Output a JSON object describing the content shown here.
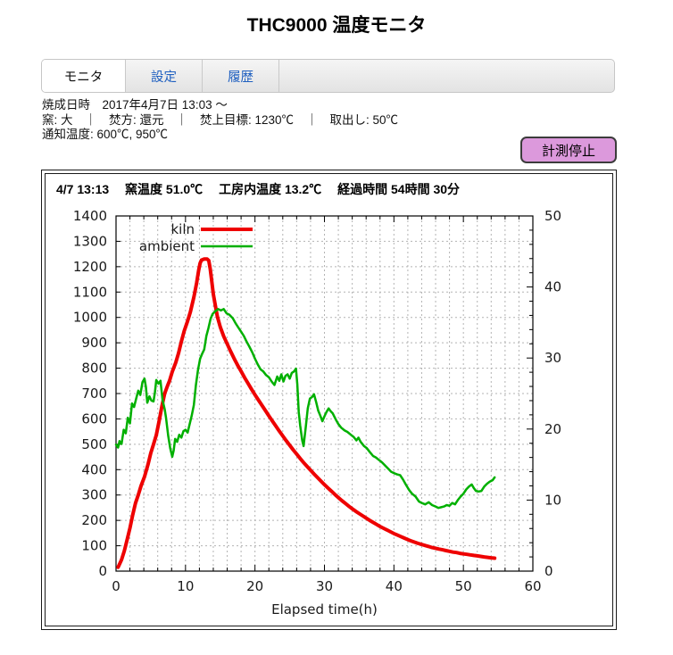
{
  "title": "THC9000 温度モニタ",
  "tabs": [
    {
      "label": "モニタ",
      "active": true
    },
    {
      "label": "設定",
      "active": false
    },
    {
      "label": "履歴",
      "active": false
    }
  ],
  "status": {
    "line1": "焼成日時　2017年4月7日 13:03 ～",
    "line2": "窯: 大　｜　焚方: 還元　｜　焚上目標: 1230℃　｜　取出し: 50℃",
    "line3": "通知温度: 600℃, 950℃"
  },
  "stop_button_label": "計測停止",
  "chart_header": "4/7 13:13　 窯温度 51.0℃　 工房内温度 13.2℃　 経過時間 54時間 30分",
  "colors": {
    "kiln": "#ee0000",
    "ambient": "#00b000",
    "grid": "#b3b3b3",
    "axis": "#000000",
    "tab_link_text": "#2060c0",
    "button_bg": "#dc99dc"
  },
  "chart_data": {
    "type": "line",
    "title": "",
    "xlabel": "Elapsed time(h)",
    "xlim": [
      0,
      60
    ],
    "xtick_step": 10,
    "x_minor_step": 2,
    "ylim_left": [
      0,
      1400
    ],
    "ytick_step_left": 100,
    "ylim_right": [
      0,
      50
    ],
    "ytick_step_right": 10,
    "y_minor_step_right": 2,
    "grid": true,
    "legend_position": "top-left-inside",
    "legend": [
      "kiln",
      "ambient"
    ],
    "series": [
      {
        "name": "kiln",
        "color": "#ee0000",
        "axis": "left",
        "width": 4,
        "points": [
          [
            0.3,
            15
          ],
          [
            0.8,
            45
          ],
          [
            1.2,
            80
          ],
          [
            1.6,
            125
          ],
          [
            2,
            170
          ],
          [
            2.4,
            222
          ],
          [
            2.8,
            268
          ],
          [
            3.2,
            300
          ],
          [
            3.6,
            336
          ],
          [
            4.1,
            372
          ],
          [
            4.6,
            420
          ],
          [
            5,
            465
          ],
          [
            5.4,
            500
          ],
          [
            5.8,
            536
          ],
          [
            6.2,
            592
          ],
          [
            6.6,
            650
          ],
          [
            7,
            700
          ],
          [
            7.4,
            730
          ],
          [
            7.7,
            750
          ],
          [
            8.1,
            786
          ],
          [
            8.6,
            822
          ],
          [
            9,
            860
          ],
          [
            9.4,
            905
          ],
          [
            9.8,
            946
          ],
          [
            10.3,
            986
          ],
          [
            10.7,
            1022
          ],
          [
            11.2,
            1080
          ],
          [
            11.6,
            1136
          ],
          [
            11.9,
            1186
          ],
          [
            12.1,
            1214
          ],
          [
            12.3,
            1226
          ],
          [
            12.7,
            1230
          ],
          [
            13.1,
            1230
          ],
          [
            13.35,
            1224
          ],
          [
            13.55,
            1192
          ],
          [
            13.75,
            1150
          ],
          [
            14,
            1092
          ],
          [
            14.3,
            1046
          ],
          [
            14.6,
            1002
          ],
          [
            15,
            962
          ],
          [
            15.5,
            926
          ],
          [
            16,
            896
          ],
          [
            16.5,
            866
          ],
          [
            17,
            838
          ],
          [
            17.5,
            812
          ],
          [
            18,
            788
          ],
          [
            18.5,
            763
          ],
          [
            19,
            740
          ],
          [
            19.5,
            717
          ],
          [
            20,
            695
          ],
          [
            20.5,
            674
          ],
          [
            21,
            654
          ],
          [
            21.5,
            633
          ],
          [
            22,
            612
          ],
          [
            22.5,
            592
          ],
          [
            23,
            572
          ],
          [
            23.5,
            552
          ],
          [
            24,
            533
          ],
          [
            24.5,
            514
          ],
          [
            25,
            496
          ],
          [
            25.5,
            478
          ],
          [
            26,
            461
          ],
          [
            26.5,
            444
          ],
          [
            27,
            428
          ],
          [
            27.5,
            413
          ],
          [
            28,
            398
          ],
          [
            28.5,
            383
          ],
          [
            29,
            369
          ],
          [
            29.5,
            355
          ],
          [
            30,
            341
          ],
          [
            30.5,
            328
          ],
          [
            31,
            315
          ],
          [
            31.5,
            302
          ],
          [
            32,
            290
          ],
          [
            32.5,
            278
          ],
          [
            33,
            267
          ],
          [
            33.5,
            256
          ],
          [
            34,
            246
          ],
          [
            34.5,
            236
          ],
          [
            35,
            227
          ],
          [
            35.5,
            218
          ],
          [
            36,
            209
          ],
          [
            36.5,
            200
          ],
          [
            37,
            192
          ],
          [
            37.5,
            184
          ],
          [
            38,
            176
          ],
          [
            38.5,
            169
          ],
          [
            39,
            162
          ],
          [
            39.5,
            155
          ],
          [
            40,
            148
          ],
          [
            40.5,
            142
          ],
          [
            41,
            136
          ],
          [
            41.5,
            130
          ],
          [
            42,
            124
          ],
          [
            42.5,
            119
          ],
          [
            43,
            114
          ],
          [
            43.5,
            109
          ],
          [
            44,
            105
          ],
          [
            44.5,
            101
          ],
          [
            45,
            97
          ],
          [
            45.5,
            93
          ],
          [
            46,
            90
          ],
          [
            46.5,
            87
          ],
          [
            47,
            84
          ],
          [
            47.5,
            81
          ],
          [
            48,
            78
          ],
          [
            48.5,
            75
          ],
          [
            49,
            73
          ],
          [
            49.5,
            70
          ],
          [
            50,
            68
          ],
          [
            50.5,
            66
          ],
          [
            51,
            64
          ],
          [
            51.5,
            62
          ],
          [
            52,
            60
          ],
          [
            52.5,
            58
          ],
          [
            53,
            56
          ],
          [
            53.5,
            54
          ],
          [
            54,
            52.5
          ],
          [
            54.5,
            51
          ]
        ]
      },
      {
        "name": "ambient",
        "color": "#00b000",
        "axis": "right",
        "width": 2.5,
        "points": [
          [
            0,
            17.8
          ],
          [
            0.3,
            17.4
          ],
          [
            0.5,
            18.3
          ],
          [
            0.8,
            17.9
          ],
          [
            1.1,
            19.9
          ],
          [
            1.4,
            19.4
          ],
          [
            1.7,
            21.6
          ],
          [
            2,
            20.8
          ],
          [
            2.3,
            23.6
          ],
          [
            2.6,
            23.1
          ],
          [
            2.9,
            24.3
          ],
          [
            3.2,
            25.4
          ],
          [
            3.5,
            24.8
          ],
          [
            3.8,
            26.6
          ],
          [
            4.1,
            27.1
          ],
          [
            4.3,
            25.9
          ],
          [
            4.5,
            23.7
          ],
          [
            4.8,
            24.6
          ],
          [
            5.1,
            24
          ],
          [
            5.4,
            23.9
          ],
          [
            5.6,
            25.2
          ],
          [
            5.8,
            26.9
          ],
          [
            6.1,
            26.4
          ],
          [
            6.4,
            26.8
          ],
          [
            6.7,
            24.1
          ],
          [
            7,
            22.8
          ],
          [
            7.2,
            21.6
          ],
          [
            7.5,
            19.1
          ],
          [
            7.8,
            17.3
          ],
          [
            8.1,
            16.1
          ],
          [
            8.3,
            17
          ],
          [
            8.5,
            18.6
          ],
          [
            8.8,
            18.2
          ],
          [
            9.1,
            19.2
          ],
          [
            9.4,
            18.8
          ],
          [
            9.7,
            19.7
          ],
          [
            10,
            19.9
          ],
          [
            10.3,
            19.5
          ],
          [
            10.6,
            20.7
          ],
          [
            10.9,
            21.9
          ],
          [
            11.2,
            23.4
          ],
          [
            11.5,
            26.2
          ],
          [
            11.8,
            28.3
          ],
          [
            12.1,
            29.9
          ],
          [
            12.4,
            30.6
          ],
          [
            12.7,
            31.2
          ],
          [
            13,
            33.1
          ],
          [
            13.3,
            34.2
          ],
          [
            13.6,
            35.5
          ],
          [
            13.9,
            36.2
          ],
          [
            14.3,
            36.6
          ],
          [
            14.7,
            36.9
          ],
          [
            15.1,
            36.7
          ],
          [
            15.5,
            36.9
          ],
          [
            15.9,
            36.3
          ],
          [
            16.3,
            36.1
          ],
          [
            16.8,
            35.6
          ],
          [
            17.2,
            34.9
          ],
          [
            17.6,
            34.3
          ],
          [
            18,
            33.7
          ],
          [
            18.4,
            33.1
          ],
          [
            18.8,
            32.3
          ],
          [
            19.2,
            31.6
          ],
          [
            19.6,
            30.8
          ],
          [
            20,
            29.9
          ],
          [
            20.4,
            29.1
          ],
          [
            20.8,
            28.4
          ],
          [
            21.2,
            28.1
          ],
          [
            21.6,
            27.6
          ],
          [
            22,
            27.3
          ],
          [
            22.4,
            26.7
          ],
          [
            22.8,
            26.2
          ],
          [
            23.2,
            27.4
          ],
          [
            23.5,
            26.8
          ],
          [
            23.8,
            27.7
          ],
          [
            24.1,
            26.7
          ],
          [
            24.4,
            27.5
          ],
          [
            24.7,
            27.7
          ],
          [
            25,
            27.1
          ],
          [
            25.3,
            27.9
          ],
          [
            25.6,
            28.1
          ],
          [
            25.9,
            28.5
          ],
          [
            26.1,
            26.3
          ],
          [
            26.3,
            22.4
          ],
          [
            26.5,
            20.5
          ],
          [
            26.8,
            18.4
          ],
          [
            27,
            17.6
          ],
          [
            27.3,
            20.2
          ],
          [
            27.6,
            22.9
          ],
          [
            27.9,
            24.3
          ],
          [
            28.2,
            24.5
          ],
          [
            28.5,
            24.9
          ],
          [
            28.8,
            23.8
          ],
          [
            29.1,
            22.6
          ],
          [
            29.4,
            21.9
          ],
          [
            29.7,
            21.1
          ],
          [
            30,
            21.8
          ],
          [
            30.3,
            22.4
          ],
          [
            30.6,
            22.9
          ],
          [
            30.9,
            22.5
          ],
          [
            31.2,
            22.2
          ],
          [
            31.6,
            21.4
          ],
          [
            32,
            20.7
          ],
          [
            32.4,
            20.2
          ],
          [
            32.9,
            19.8
          ],
          [
            33.3,
            19.6
          ],
          [
            33.8,
            19.2
          ],
          [
            34.2,
            18.9
          ],
          [
            34.6,
            18.4
          ],
          [
            34.9,
            18.8
          ],
          [
            35.2,
            18.2
          ],
          [
            35.7,
            17.6
          ],
          [
            36.1,
            17.3
          ],
          [
            36.5,
            16.8
          ],
          [
            37,
            16.2
          ],
          [
            37.4,
            16
          ],
          [
            37.9,
            15.6
          ],
          [
            38.3,
            15.3
          ],
          [
            38.8,
            14.8
          ],
          [
            39.2,
            14.4
          ],
          [
            39.6,
            14
          ],
          [
            40,
            13.8
          ],
          [
            40.5,
            13.6
          ],
          [
            40.9,
            13.5
          ],
          [
            41.3,
            12.9
          ],
          [
            41.7,
            12.2
          ],
          [
            42.2,
            11.4
          ],
          [
            42.6,
            10.9
          ],
          [
            43.1,
            10.5
          ],
          [
            43.6,
            9.8
          ],
          [
            44,
            9.6
          ],
          [
            44.5,
            9.4
          ],
          [
            45,
            9.7
          ],
          [
            45.5,
            9.3
          ],
          [
            46,
            9.1
          ],
          [
            46.4,
            8.9
          ],
          [
            46.8,
            9
          ],
          [
            47.2,
            9.1
          ],
          [
            47.6,
            9.3
          ],
          [
            48,
            9.2
          ],
          [
            48.4,
            9.6
          ],
          [
            48.8,
            9.4
          ],
          [
            49.2,
            10
          ],
          [
            49.6,
            10.5
          ],
          [
            50,
            10.9
          ],
          [
            50.4,
            11.5
          ],
          [
            50.8,
            11.9
          ],
          [
            51.2,
            12.2
          ],
          [
            51.5,
            11.7
          ],
          [
            51.8,
            11.3
          ],
          [
            52.2,
            11.2
          ],
          [
            52.6,
            11.3
          ],
          [
            53,
            11.9
          ],
          [
            53.4,
            12.3
          ],
          [
            53.8,
            12.6
          ],
          [
            54.2,
            12.8
          ],
          [
            54.5,
            13.2
          ]
        ]
      }
    ]
  }
}
